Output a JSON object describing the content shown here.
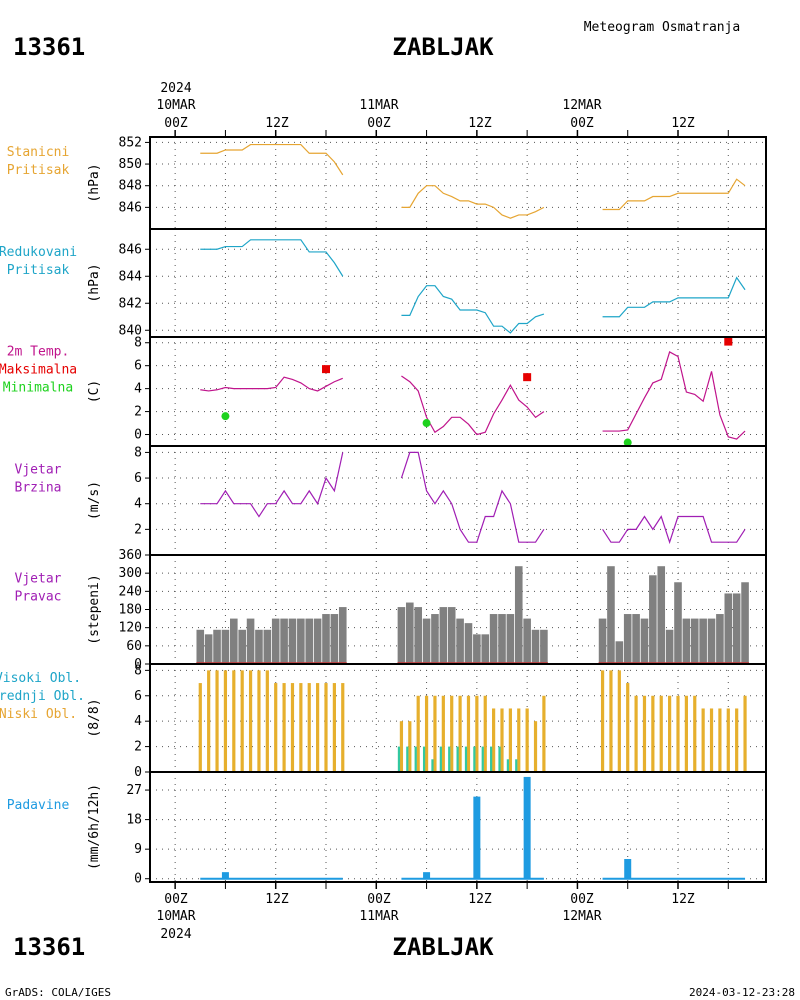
{
  "header": {
    "station_id": "13361",
    "station_name": "ZABLJAK",
    "subtitle": "Meteogram Osmatranja"
  },
  "footer": {
    "credit": "GrADS: COLA/IGES",
    "timestamp": "2024-03-12-23:28"
  },
  "time_axis": {
    "year": "2024",
    "day_labels": [
      "10MAR",
      "11MAR",
      "12MAR"
    ],
    "hour_labels": [
      "00Z",
      "12Z",
      "00Z",
      "12Z",
      "00Z",
      "12Z"
    ],
    "hour_ticks": [
      0,
      12,
      24,
      36,
      48,
      60
    ],
    "range_hours": [
      -3,
      70.5
    ]
  },
  "colors": {
    "station_pressure": "#e6a532",
    "reduced_pressure": "#1ea5c8",
    "temperature": "#c0148c",
    "tmax": "#e60000",
    "tmin": "#1ed21e",
    "wind": "#a01eb4",
    "wind_dir_bar": "#808080",
    "cloud_low": "#e6af2d",
    "cloud_mid": "#32c8a0",
    "precip": "#1e9be1"
  },
  "chart_data": [
    {
      "type": "line",
      "id": "station_pressure",
      "labels": [
        "Stanicni",
        "Pritisak"
      ],
      "unit": "(hPa)",
      "ylim": [
        844,
        852.5
      ],
      "yticks": [
        846,
        848,
        850,
        852
      ],
      "series": [
        {
          "segments": [
            {
              "x": [
                3,
                4,
                5,
                6,
                7,
                8,
                9,
                10,
                11,
                12,
                13,
                14,
                15,
                16,
                17,
                18,
                19,
                20
              ],
              "y": [
                851,
                851,
                851,
                851.3,
                851.3,
                851.3,
                851.8,
                851.8,
                851.8,
                851.8,
                851.8,
                851.8,
                851.8,
                851.0,
                851.0,
                851.0,
                850.2,
                849.0
              ]
            },
            {
              "x": [
                27,
                28,
                29,
                30,
                31,
                32,
                33,
                34,
                35,
                36,
                37,
                38,
                39,
                40,
                41,
                42,
                43,
                44
              ],
              "y": [
                846,
                846,
                847.3,
                848.0,
                848.0,
                847.3,
                847.0,
                846.6,
                846.6,
                846.3,
                846.3,
                846.0,
                845.3,
                845.0,
                845.3,
                845.3,
                845.6,
                846.0
              ]
            },
            {
              "x": [
                51,
                52,
                53,
                54,
                55,
                56,
                57,
                58,
                59,
                60,
                61,
                62,
                63,
                64,
                65,
                66,
                67,
                68
              ],
              "y": [
                845.8,
                845.8,
                845.8,
                846.6,
                846.6,
                846.6,
                847.0,
                847.0,
                847.0,
                847.3,
                847.3,
                847.3,
                847.3,
                847.3,
                847.3,
                847.3,
                848.6,
                848.0
              ]
            }
          ]
        }
      ]
    },
    {
      "type": "line",
      "id": "reduced_pressure",
      "labels": [
        "Redukovani",
        "Pritisak"
      ],
      "unit": "(hPa)",
      "ylim": [
        839.5,
        847.5
      ],
      "yticks": [
        840,
        842,
        844,
        846
      ],
      "series": [
        {
          "segments": [
            {
              "x": [
                3,
                4,
                5,
                6,
                7,
                8,
                9,
                10,
                11,
                12,
                13,
                14,
                15,
                16,
                17,
                18,
                19,
                20
              ],
              "y": [
                846,
                846,
                846,
                846.2,
                846.2,
                846.2,
                846.7,
                846.7,
                846.7,
                846.7,
                846.7,
                846.7,
                846.7,
                845.8,
                845.8,
                845.8,
                845.0,
                844.0
              ]
            },
            {
              "x": [
                27,
                28,
                29,
                30,
                31,
                32,
                33,
                34,
                35,
                36,
                37,
                38,
                39,
                40,
                41,
                42,
                43,
                44
              ],
              "y": [
                841.1,
                841.1,
                842.5,
                843.3,
                843.3,
                842.5,
                842.3,
                841.5,
                841.5,
                841.5,
                841.3,
                840.3,
                840.3,
                839.8,
                840.5,
                840.5,
                841.0,
                841.2
              ]
            },
            {
              "x": [
                51,
                52,
                53,
                54,
                55,
                56,
                57,
                58,
                59,
                60,
                61,
                62,
                63,
                64,
                65,
                66,
                67,
                68
              ],
              "y": [
                841.0,
                841.0,
                841.0,
                841.7,
                841.7,
                841.7,
                842.1,
                842.1,
                842.1,
                842.4,
                842.4,
                842.4,
                842.4,
                842.4,
                842.4,
                842.4,
                843.9,
                843.0
              ]
            }
          ]
        }
      ]
    },
    {
      "type": "line",
      "id": "temperature",
      "labels": [
        "2m Temp.",
        "Maksimalna",
        "Minimalna"
      ],
      "unit": "(C)",
      "ylim": [
        -1,
        8.5
      ],
      "yticks": [
        0,
        2,
        4,
        6,
        8
      ],
      "series": [
        {
          "name": "2m Temp.",
          "segments": [
            {
              "x": [
                3,
                4,
                5,
                6,
                7,
                8,
                9,
                10,
                11,
                12,
                13,
                14,
                15,
                16,
                17,
                18,
                19,
                20
              ],
              "y": [
                3.9,
                3.8,
                3.9,
                4.1,
                4.0,
                4.0,
                4.0,
                4.0,
                4.0,
                4.1,
                5.0,
                4.8,
                4.5,
                4.0,
                3.8,
                4.2,
                4.6,
                4.9
              ]
            },
            {
              "x": [
                27,
                28,
                29,
                30,
                31,
                32,
                33,
                34,
                35,
                36,
                37,
                38,
                39,
                40,
                41,
                42,
                43,
                44
              ],
              "y": [
                5.1,
                4.6,
                3.8,
                1.5,
                0.2,
                0.7,
                1.5,
                1.5,
                0.9,
                0.0,
                0.2,
                1.8,
                3.0,
                4.3,
                3.0,
                2.4,
                1.5,
                2.0
              ]
            },
            {
              "x": [
                51,
                52,
                53,
                54,
                55,
                56,
                57,
                58,
                59,
                60,
                61,
                62,
                63,
                64,
                65,
                66,
                67,
                68
              ],
              "y": [
                0.3,
                0.3,
                0.3,
                0.4,
                1.8,
                3.2,
                4.5,
                4.8,
                7.2,
                6.8,
                3.7,
                3.5,
                2.9,
                5.5,
                1.7,
                -0.2,
                -0.4,
                0.3
              ]
            }
          ]
        },
        {
          "name": "Maksimalna",
          "points": [
            {
              "x": 18,
              "y": 5.7
            },
            {
              "x": 42,
              "y": 5.0
            },
            {
              "x": 66,
              "y": 8.1
            }
          ]
        },
        {
          "name": "Minimalna",
          "points": [
            {
              "x": 6,
              "y": 1.6
            },
            {
              "x": 30,
              "y": 1.0
            },
            {
              "x": 54,
              "y": -0.7
            }
          ]
        }
      ]
    },
    {
      "type": "line",
      "id": "wind_speed",
      "labels": [
        "Vjetar",
        "Brzina"
      ],
      "unit": "(m/s)",
      "ylim": [
        0,
        8.5
      ],
      "yticks": [
        2,
        4,
        6,
        8
      ],
      "series": [
        {
          "segments": [
            {
              "x": [
                3,
                4,
                5,
                6,
                7,
                8,
                9,
                10,
                11,
                12,
                13,
                14,
                15,
                16,
                17,
                18,
                19,
                20
              ],
              "y": [
                4,
                4,
                4,
                5,
                4,
                4,
                4,
                3,
                4,
                4,
                5,
                4,
                4,
                5,
                4,
                6,
                5,
                8
              ]
            },
            {
              "x": [
                27,
                28,
                29,
                30,
                31,
                32,
                33,
                34,
                35,
                36,
                37,
                38,
                39,
                40,
                41,
                42,
                43,
                44
              ],
              "y": [
                6,
                8,
                8,
                5,
                4,
                5,
                4,
                2,
                1,
                1,
                3,
                3,
                5,
                4,
                1,
                1,
                1,
                2
              ]
            },
            {
              "x": [
                51,
                52,
                53,
                54,
                55,
                56,
                57,
                58,
                59,
                60,
                61,
                62,
                63,
                64,
                65,
                66,
                67,
                68
              ],
              "y": [
                2,
                1,
                1,
                2,
                2,
                3,
                2,
                3,
                1,
                3,
                3,
                3,
                3,
                1,
                1,
                1,
                1,
                2
              ]
            }
          ]
        }
      ]
    },
    {
      "type": "bar",
      "id": "wind_direction",
      "labels": [
        "Vjetar",
        "Pravac"
      ],
      "unit": "(stepeni)",
      "ylim": [
        0,
        360
      ],
      "yticks": [
        0,
        60,
        120,
        180,
        240,
        300,
        360
      ],
      "series": [
        {
          "x": [
            3,
            4,
            5,
            6,
            7,
            8,
            9,
            10,
            11,
            12,
            13,
            14,
            15,
            16,
            17,
            18,
            19,
            20
          ],
          "values": [
            113,
            98,
            113,
            113,
            150,
            113,
            150,
            113,
            113,
            150,
            150,
            150,
            150,
            150,
            150,
            165,
            165,
            188
          ]
        },
        {
          "x": [
            27,
            28,
            29,
            30,
            31,
            32,
            33,
            34,
            35,
            36,
            37,
            38,
            39,
            40,
            41,
            42,
            43,
            44
          ],
          "values": [
            188,
            203,
            188,
            150,
            165,
            188,
            188,
            150,
            135,
            98,
            98,
            165,
            165,
            165,
            323,
            150,
            113,
            113
          ]
        },
        {
          "x": [
            51,
            52,
            53,
            54,
            55,
            56,
            57,
            58,
            59,
            60,
            61,
            62,
            63,
            64,
            65,
            66,
            67,
            68
          ],
          "values": [
            150,
            323,
            75,
            165,
            165,
            150,
            293,
            323,
            113,
            270,
            150,
            150,
            150,
            150,
            165,
            233,
            233,
            270
          ]
        }
      ]
    },
    {
      "type": "bar",
      "id": "clouds",
      "labels": [
        "Visoki Obl.",
        "Srednji Obl.",
        "Niski Obl."
      ],
      "unit": "(8/8)",
      "ylim": [
        0,
        8.5
      ],
      "yticks": [
        0,
        2,
        4,
        6,
        8
      ],
      "series": [
        {
          "name": "Niski Obl.",
          "x": [
            3,
            4,
            5,
            6,
            7,
            8,
            9,
            10,
            11,
            12,
            13,
            14,
            15,
            16,
            17,
            18,
            19,
            20,
            27,
            28,
            29,
            30,
            31,
            32,
            33,
            34,
            35,
            36,
            37,
            38,
            39,
            40,
            41,
            42,
            43,
            44,
            51,
            52,
            53,
            54,
            55,
            56,
            57,
            58,
            59,
            60,
            61,
            62,
            63,
            64,
            65,
            66,
            67,
            68
          ],
          "values": [
            7,
            8,
            8,
            8,
            8,
            8,
            8,
            8,
            8,
            7,
            7,
            7,
            7,
            7,
            7,
            7,
            7,
            7,
            4,
            4,
            6,
            6,
            6,
            6,
            6,
            6,
            6,
            6,
            6,
            5,
            5,
            5,
            5,
            5,
            4,
            6,
            8,
            8,
            8,
            7,
            6,
            6,
            6,
            6,
            6,
            6,
            6,
            6,
            5,
            5,
            5,
            5,
            5,
            6
          ]
        },
        {
          "name": "Srednji Obl.",
          "x": [
            27,
            28,
            29,
            30,
            31,
            32,
            33,
            34,
            35,
            36,
            37,
            38,
            39,
            40,
            41
          ],
          "values": [
            2,
            2,
            2,
            2,
            1,
            2,
            2,
            2,
            2,
            2,
            2,
            2,
            2,
            1,
            1
          ]
        }
      ]
    },
    {
      "type": "bar",
      "id": "precipitation",
      "labels": [
        "Padavine"
      ],
      "unit": "(mm/6h/12h)",
      "ylim": [
        -1,
        32.5
      ],
      "yticks": [
        0,
        9,
        18,
        27
      ],
      "series": [
        {
          "x": [
            6,
            30,
            36,
            42,
            54
          ],
          "values": [
            2.0,
            2.0,
            25.0,
            31.0,
            6.0
          ]
        }
      ],
      "baseline_segments": [
        [
          3,
          20
        ],
        [
          27,
          44
        ],
        [
          51,
          68
        ]
      ]
    }
  ]
}
